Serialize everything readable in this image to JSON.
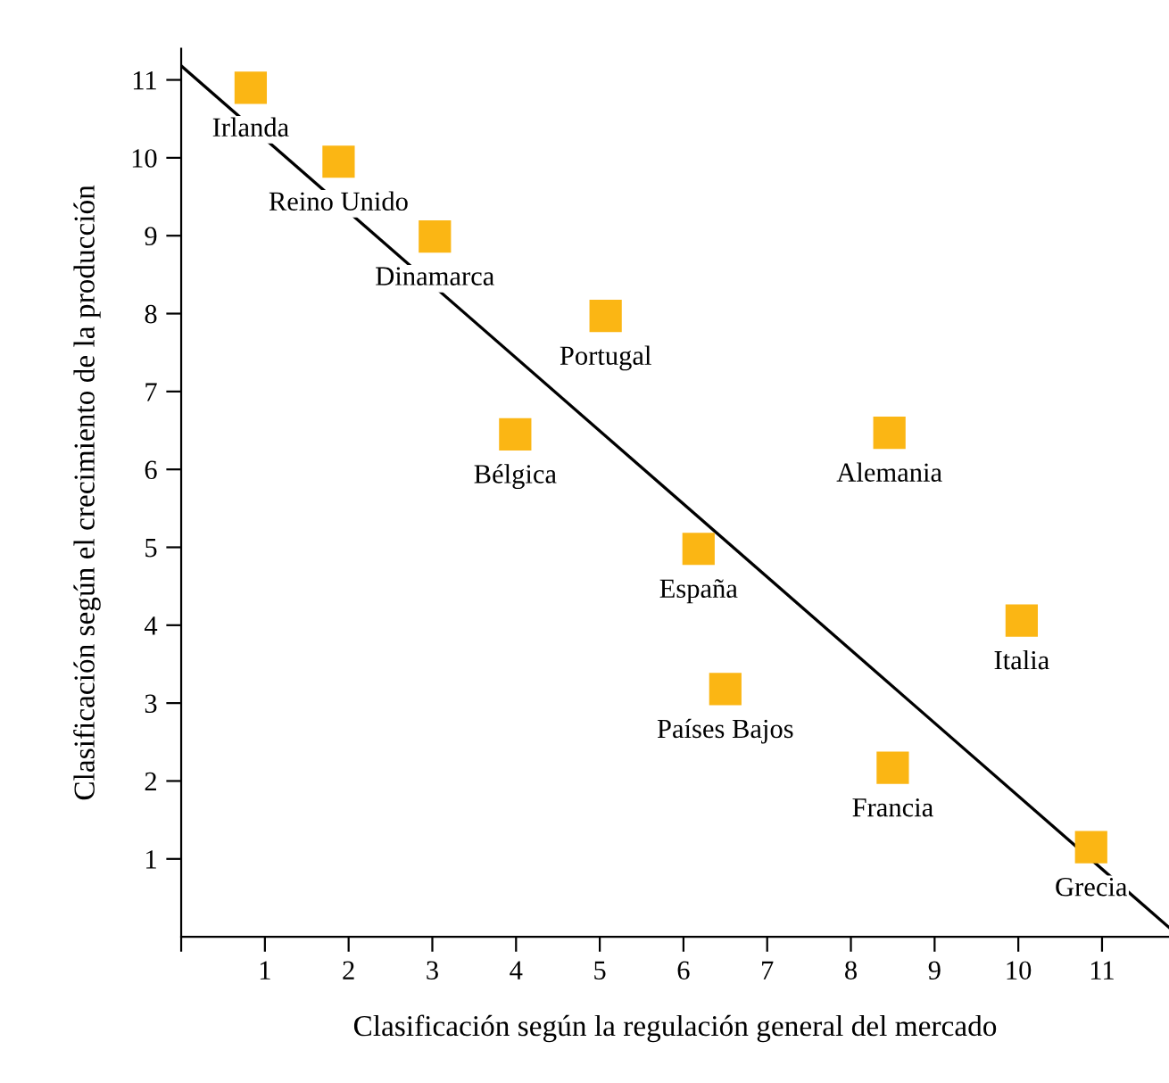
{
  "chart_data": {
    "type": "scatter",
    "xlabel": "Clasificación según la regulación general del mercado",
    "ylabel": "Clasificación según el crecimiento de la producción",
    "xlim": [
      0,
      11.8
    ],
    "ylim": [
      0,
      11.4
    ],
    "xticks": [
      {
        "value": 0,
        "label": null
      },
      1,
      2,
      3,
      4,
      5,
      6,
      7,
      8,
      9,
      10,
      11
    ],
    "yticks": [
      1,
      2,
      3,
      4,
      5,
      6,
      7,
      8,
      9,
      10,
      11
    ],
    "grid": false,
    "marker": "square",
    "series": [
      {
        "color": "#fbb614",
        "x": [
          0.83,
          1.88,
          3.03,
          5.07,
          3.99,
          8.46,
          6.18,
          10.04,
          6.5,
          8.5,
          10.87
        ],
        "values": [
          10.9,
          9.95,
          8.99,
          7.97,
          6.45,
          6.47,
          4.98,
          4.06,
          3.18,
          2.17,
          1.15
        ]
      },
      {
        "type": "line",
        "color": "#000000",
        "line_style": "solid",
        "marker": "none",
        "x": [
          0,
          11.8
        ],
        "values": [
          11.18,
          0.12
        ]
      }
    ],
    "annotations": [
      {
        "text": "Irlanda",
        "x": 0.83,
        "y": 10.9
      },
      {
        "text": "Reino Unido",
        "x": 1.88,
        "y": 9.95
      },
      {
        "text": "Dinamarca",
        "x": 3.03,
        "y": 8.99
      },
      {
        "text": "Portugal",
        "x": 5.07,
        "y": 7.97
      },
      {
        "text": "Bélgica",
        "x": 3.99,
        "y": 6.45
      },
      {
        "text": "Alemania",
        "x": 8.46,
        "y": 6.47
      },
      {
        "text": "España",
        "x": 6.18,
        "y": 4.98
      },
      {
        "text": "Italia",
        "x": 10.04,
        "y": 4.06
      },
      {
        "text": "Países Bajos",
        "x": 6.5,
        "y": 3.18
      },
      {
        "text": "Francia",
        "x": 8.5,
        "y": 2.17
      },
      {
        "text": "Grecia",
        "x": 10.87,
        "y": 1.15
      }
    ]
  }
}
